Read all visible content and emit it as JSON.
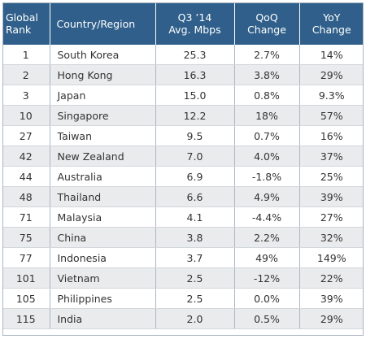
{
  "table": {
    "headers": {
      "rank": [
        "Global",
        "Rank"
      ],
      "country": [
        "Country/Region"
      ],
      "speed": [
        "Q3 ’14",
        "Avg. Mbps"
      ],
      "qoq": [
        "QoQ",
        "Change"
      ],
      "yoy": [
        "YoY",
        "Change"
      ]
    },
    "rows": [
      {
        "rank": "1",
        "country": "South Korea",
        "speed": "25.3",
        "qoq": "2.7%",
        "yoy": "14%"
      },
      {
        "rank": "2",
        "country": "Hong Kong",
        "speed": "16.3",
        "qoq": "3.8%",
        "yoy": "29%"
      },
      {
        "rank": "3",
        "country": "Japan",
        "speed": "15.0",
        "qoq": "0.8%",
        "yoy": "9.3%"
      },
      {
        "rank": "10",
        "country": "Singapore",
        "speed": "12.2",
        "qoq": "18%",
        "yoy": "57%"
      },
      {
        "rank": "27",
        "country": "Taiwan",
        "speed": "9.5",
        "qoq": "0.7%",
        "yoy": "16%"
      },
      {
        "rank": "42",
        "country": "New Zealand",
        "speed": "7.0",
        "qoq": "4.0%",
        "yoy": "37%"
      },
      {
        "rank": "44",
        "country": "Australia",
        "speed": "6.9",
        "qoq": "-1.8%",
        "yoy": "25%"
      },
      {
        "rank": "48",
        "country": "Thailand",
        "speed": "6.6",
        "qoq": "4.9%",
        "yoy": "39%"
      },
      {
        "rank": "71",
        "country": "Malaysia",
        "speed": "4.1",
        "qoq": "-4.4%",
        "yoy": "27%"
      },
      {
        "rank": "75",
        "country": "China",
        "speed": "3.8",
        "qoq": "2.2%",
        "yoy": "32%"
      },
      {
        "rank": "77",
        "country": "Indonesia",
        "speed": "3.7",
        "qoq": "49%",
        "yoy": "149%"
      },
      {
        "rank": "101",
        "country": "Vietnam",
        "speed": "2.5",
        "qoq": "-12%",
        "yoy": "22%"
      },
      {
        "rank": "105",
        "country": "Philippines",
        "speed": "2.5",
        "qoq": "0.0%",
        "yoy": "39%"
      },
      {
        "rank": "115",
        "country": "India",
        "speed": "2.0",
        "qoq": "0.5%",
        "yoy": "29%"
      }
    ]
  },
  "colors": {
    "header_bg": "#2f5f8a",
    "header_text": "#ffffff",
    "row_alt_bg": "#e9ebed",
    "body_text": "#333333"
  }
}
